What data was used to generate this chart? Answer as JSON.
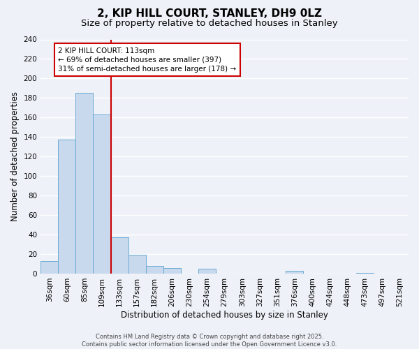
{
  "title": "2, KIP HILL COURT, STANLEY, DH9 0LZ",
  "subtitle": "Size of property relative to detached houses in Stanley",
  "xlabel": "Distribution of detached houses by size in Stanley",
  "ylabel": "Number of detached properties",
  "bar_labels": [
    "36sqm",
    "60sqm",
    "85sqm",
    "109sqm",
    "133sqm",
    "157sqm",
    "182sqm",
    "206sqm",
    "230sqm",
    "254sqm",
    "279sqm",
    "303sqm",
    "327sqm",
    "351sqm",
    "376sqm",
    "400sqm",
    "424sqm",
    "448sqm",
    "473sqm",
    "497sqm",
    "521sqm"
  ],
  "bar_heights": [
    13,
    137,
    185,
    163,
    37,
    19,
    8,
    6,
    0,
    5,
    0,
    0,
    0,
    0,
    3,
    0,
    0,
    0,
    1,
    0,
    0
  ],
  "bar_color": "#c8d9ee",
  "bar_edge_color": "#6aaad4",
  "vline_x_index": 3.5,
  "vline_color": "#cc0000",
  "annotation_text": "2 KIP HILL COURT: 113sqm\n← 69% of detached houses are smaller (397)\n31% of semi-detached houses are larger (178) →",
  "annotation_box_color": "white",
  "annotation_box_edge_color": "#cc0000",
  "ylim": [
    0,
    240
  ],
  "yticks": [
    0,
    20,
    40,
    60,
    80,
    100,
    120,
    140,
    160,
    180,
    200,
    220,
    240
  ],
  "footer_text": "Contains HM Land Registry data © Crown copyright and database right 2025.\nContains public sector information licensed under the Open Government Licence v3.0.",
  "bg_color": "#eef2f8",
  "grid_color": "white",
  "title_fontsize": 11,
  "subtitle_fontsize": 9.5,
  "axis_label_fontsize": 8.5,
  "tick_fontsize": 7.5,
  "footer_fontsize": 6
}
